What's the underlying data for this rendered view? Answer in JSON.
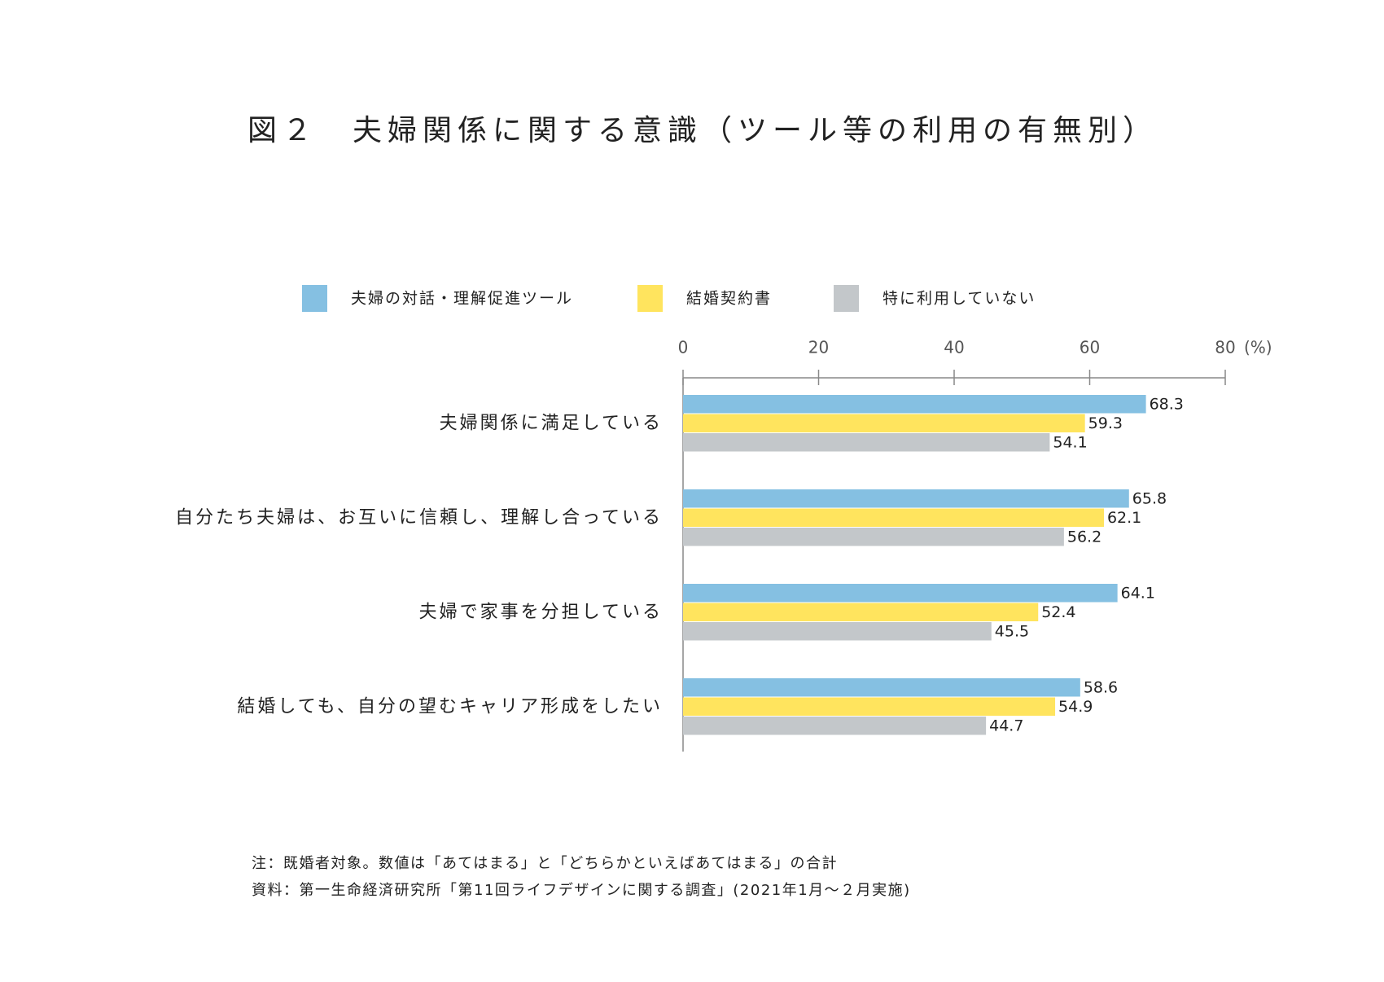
{
  "chart_data": {
    "type": "bar",
    "orientation": "horizontal",
    "title": "図２　夫婦関係に関する意識（ツール等の利用の有無別）",
    "categories": [
      "夫婦関係に満足している",
      "自分たち夫婦は、お互いに信頼し、理解し合っている",
      "夫婦で家事を分担している",
      "結婚しても、自分の望むキャリア形成をしたい"
    ],
    "series": [
      {
        "name": "夫婦の対話・理解促進ツール",
        "color": "#85c0e2",
        "values": [
          68.3,
          65.8,
          64.1,
          58.6
        ]
      },
      {
        "name": "結婚契約書",
        "color": "#ffe45e",
        "values": [
          59.3,
          62.1,
          52.4,
          54.9
        ]
      },
      {
        "name": "特に利用していない",
        "color": "#c3c7ca",
        "values": [
          54.1,
          56.2,
          45.5,
          44.7
        ]
      }
    ],
    "xlim": [
      0,
      80
    ],
    "xticks": [
      0,
      20,
      40,
      60,
      80
    ],
    "x_unit": "(%)",
    "legend": "top",
    "notes": [
      "注：既婚者対象。数値は「あてはまる」と「どちらかといえばあてはまる」の合計",
      "資料：第一生命経済研究所「第11回ライフデザインに関する調査」(2021年1月〜２月実施)"
    ]
  }
}
